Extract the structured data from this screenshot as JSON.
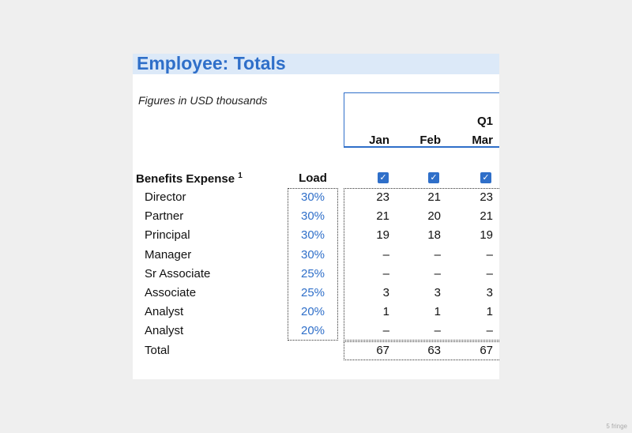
{
  "title": "Employee: Totals",
  "subtitle": "Figures in USD thousands",
  "header": {
    "quarter": "Q1",
    "months": [
      "Jan",
      "Feb",
      "Mar"
    ]
  },
  "section": {
    "label": "Benefits Expense",
    "footnote": "1",
    "load_header": "Load",
    "checkbox_glyph": "✓"
  },
  "rows": [
    {
      "label": "Director",
      "load": "30%",
      "values": [
        "23",
        "21",
        "23"
      ]
    },
    {
      "label": "Partner",
      "load": "30%",
      "values": [
        "21",
        "20",
        "21"
      ]
    },
    {
      "label": "Principal",
      "load": "30%",
      "values": [
        "19",
        "18",
        "19"
      ]
    },
    {
      "label": "Manager",
      "load": "30%",
      "values": [
        "–",
        "–",
        "–"
      ]
    },
    {
      "label": "Sr Associate",
      "load": "25%",
      "values": [
        "–",
        "–",
        "–"
      ]
    },
    {
      "label": "Associate",
      "load": "25%",
      "values": [
        "3",
        "3",
        "3"
      ]
    },
    {
      "label": "Analyst",
      "load": "20%",
      "values": [
        "1",
        "1",
        "1"
      ]
    },
    {
      "label": "Analyst",
      "load": "20%",
      "values": [
        "–",
        "–",
        "–"
      ]
    }
  ],
  "total": {
    "label": "Total",
    "values": [
      "67",
      "63",
      "67"
    ]
  },
  "colors": {
    "accent": "#2f6fc9",
    "title_band": "#dce9f8"
  },
  "watermark": "5 fringe"
}
